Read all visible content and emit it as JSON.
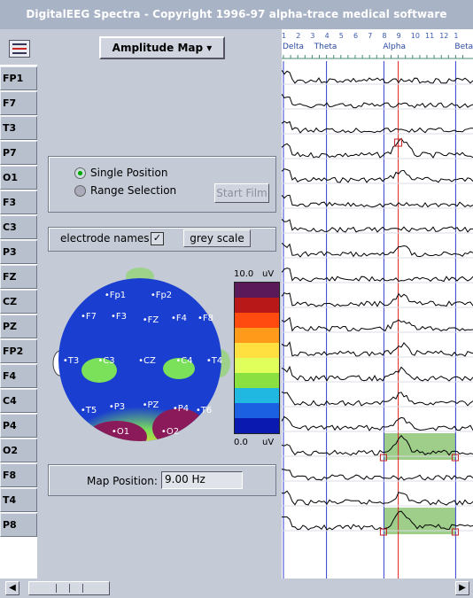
{
  "window": {
    "title": "DigitalEEG Spectra - Copyright 1996-97 alpha-trace medical software"
  },
  "toolbar": {
    "menu_icon": "list-icon",
    "mode_button": "Amplitude Map"
  },
  "electrodes": [
    "FP1",
    "F7",
    "T3",
    "P7",
    "O1",
    "F3",
    "C3",
    "P3",
    "FZ",
    "CZ",
    "PZ",
    "FP2",
    "F4",
    "C4",
    "P4",
    "O2",
    "F8",
    "T4",
    "P8"
  ],
  "film_mode": {
    "options": [
      "Single Position",
      "Range Selection"
    ],
    "selected": "Single Position",
    "start_button": "Start Film"
  },
  "display_opts": {
    "names_label": "electrode names",
    "names_checked": true,
    "grey_button": "grey scale"
  },
  "head_map": {
    "labels": [
      "Fp1",
      "Fp2",
      "F7",
      "F3",
      "FZ",
      "F4",
      "F8",
      "T3",
      "C3",
      "CZ",
      "C4",
      "T4",
      "T5",
      "P3",
      "PZ",
      "P4",
      "T6",
      "O1",
      "O2"
    ],
    "colors": {
      "low": "#1a3ecf",
      "mid": "#7be05a",
      "high": "#ffd52a",
      "peak": "#8a1a5a"
    }
  },
  "scale": {
    "max": "10.0",
    "min": "0.0",
    "unit": "uV",
    "colors": [
      "#5a1a5a",
      "#b81818",
      "#ff4a10",
      "#ff9a1a",
      "#ffe040",
      "#e0ff5a",
      "#8ae040",
      "#20b8e0",
      "#1a60e0",
      "#0a1ab0"
    ]
  },
  "map_position": {
    "label": "Map Position:",
    "value": "9.00 Hz"
  },
  "spectrum": {
    "freq_ticks": [
      "1",
      "2",
      "3",
      "4",
      "5",
      "6",
      "7",
      "8",
      "9",
      "10",
      "11",
      "12",
      "1"
    ],
    "bands": [
      "Delta",
      "Theta",
      "Alpha",
      "Beta"
    ],
    "cursor_hz": 9.0,
    "band_lines_hz": [
      1.0,
      4.0,
      8.0,
      13.0
    ],
    "selection_hz": [
      8.0,
      13.0
    ],
    "selected_rows": [
      "O2",
      "P8"
    ],
    "marked_row": "P7"
  }
}
